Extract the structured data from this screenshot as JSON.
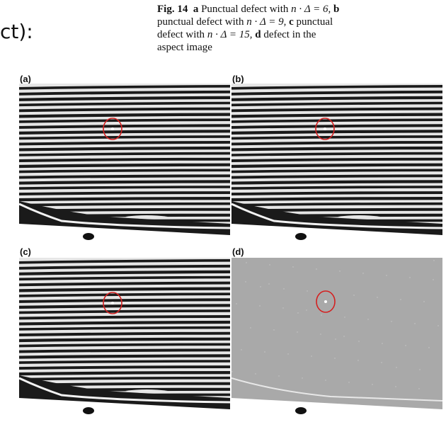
{
  "fragment_text": "ct):",
  "caption": {
    "fig": "Fig. 14",
    "a_letter": "a",
    "a_text": " Punctual defect with ",
    "a_math": "n · Δ = 6",
    "b_letter": "b",
    "b_text": " punctual defect with ",
    "b_math": "n · Δ = 9",
    "c_letter": "c",
    "c_text": " punctual defect with ",
    "c_math": "n · Δ = 15",
    "d_letter": "d",
    "d_text": " defect in the aspect image"
  },
  "panels": [
    {
      "label": "(a)",
      "kind": "fringe"
    },
    {
      "label": "(b)",
      "kind": "fringe"
    },
    {
      "label": "(c)",
      "kind": "fringe"
    },
    {
      "label": "(d)",
      "kind": "aspect"
    }
  ],
  "colors": {
    "stripe_dark": "#1a1a1a",
    "stripe_light": "#e6e6e6",
    "aspect_gray": "#a9a9a9",
    "defect_circle": "#d42020"
  }
}
